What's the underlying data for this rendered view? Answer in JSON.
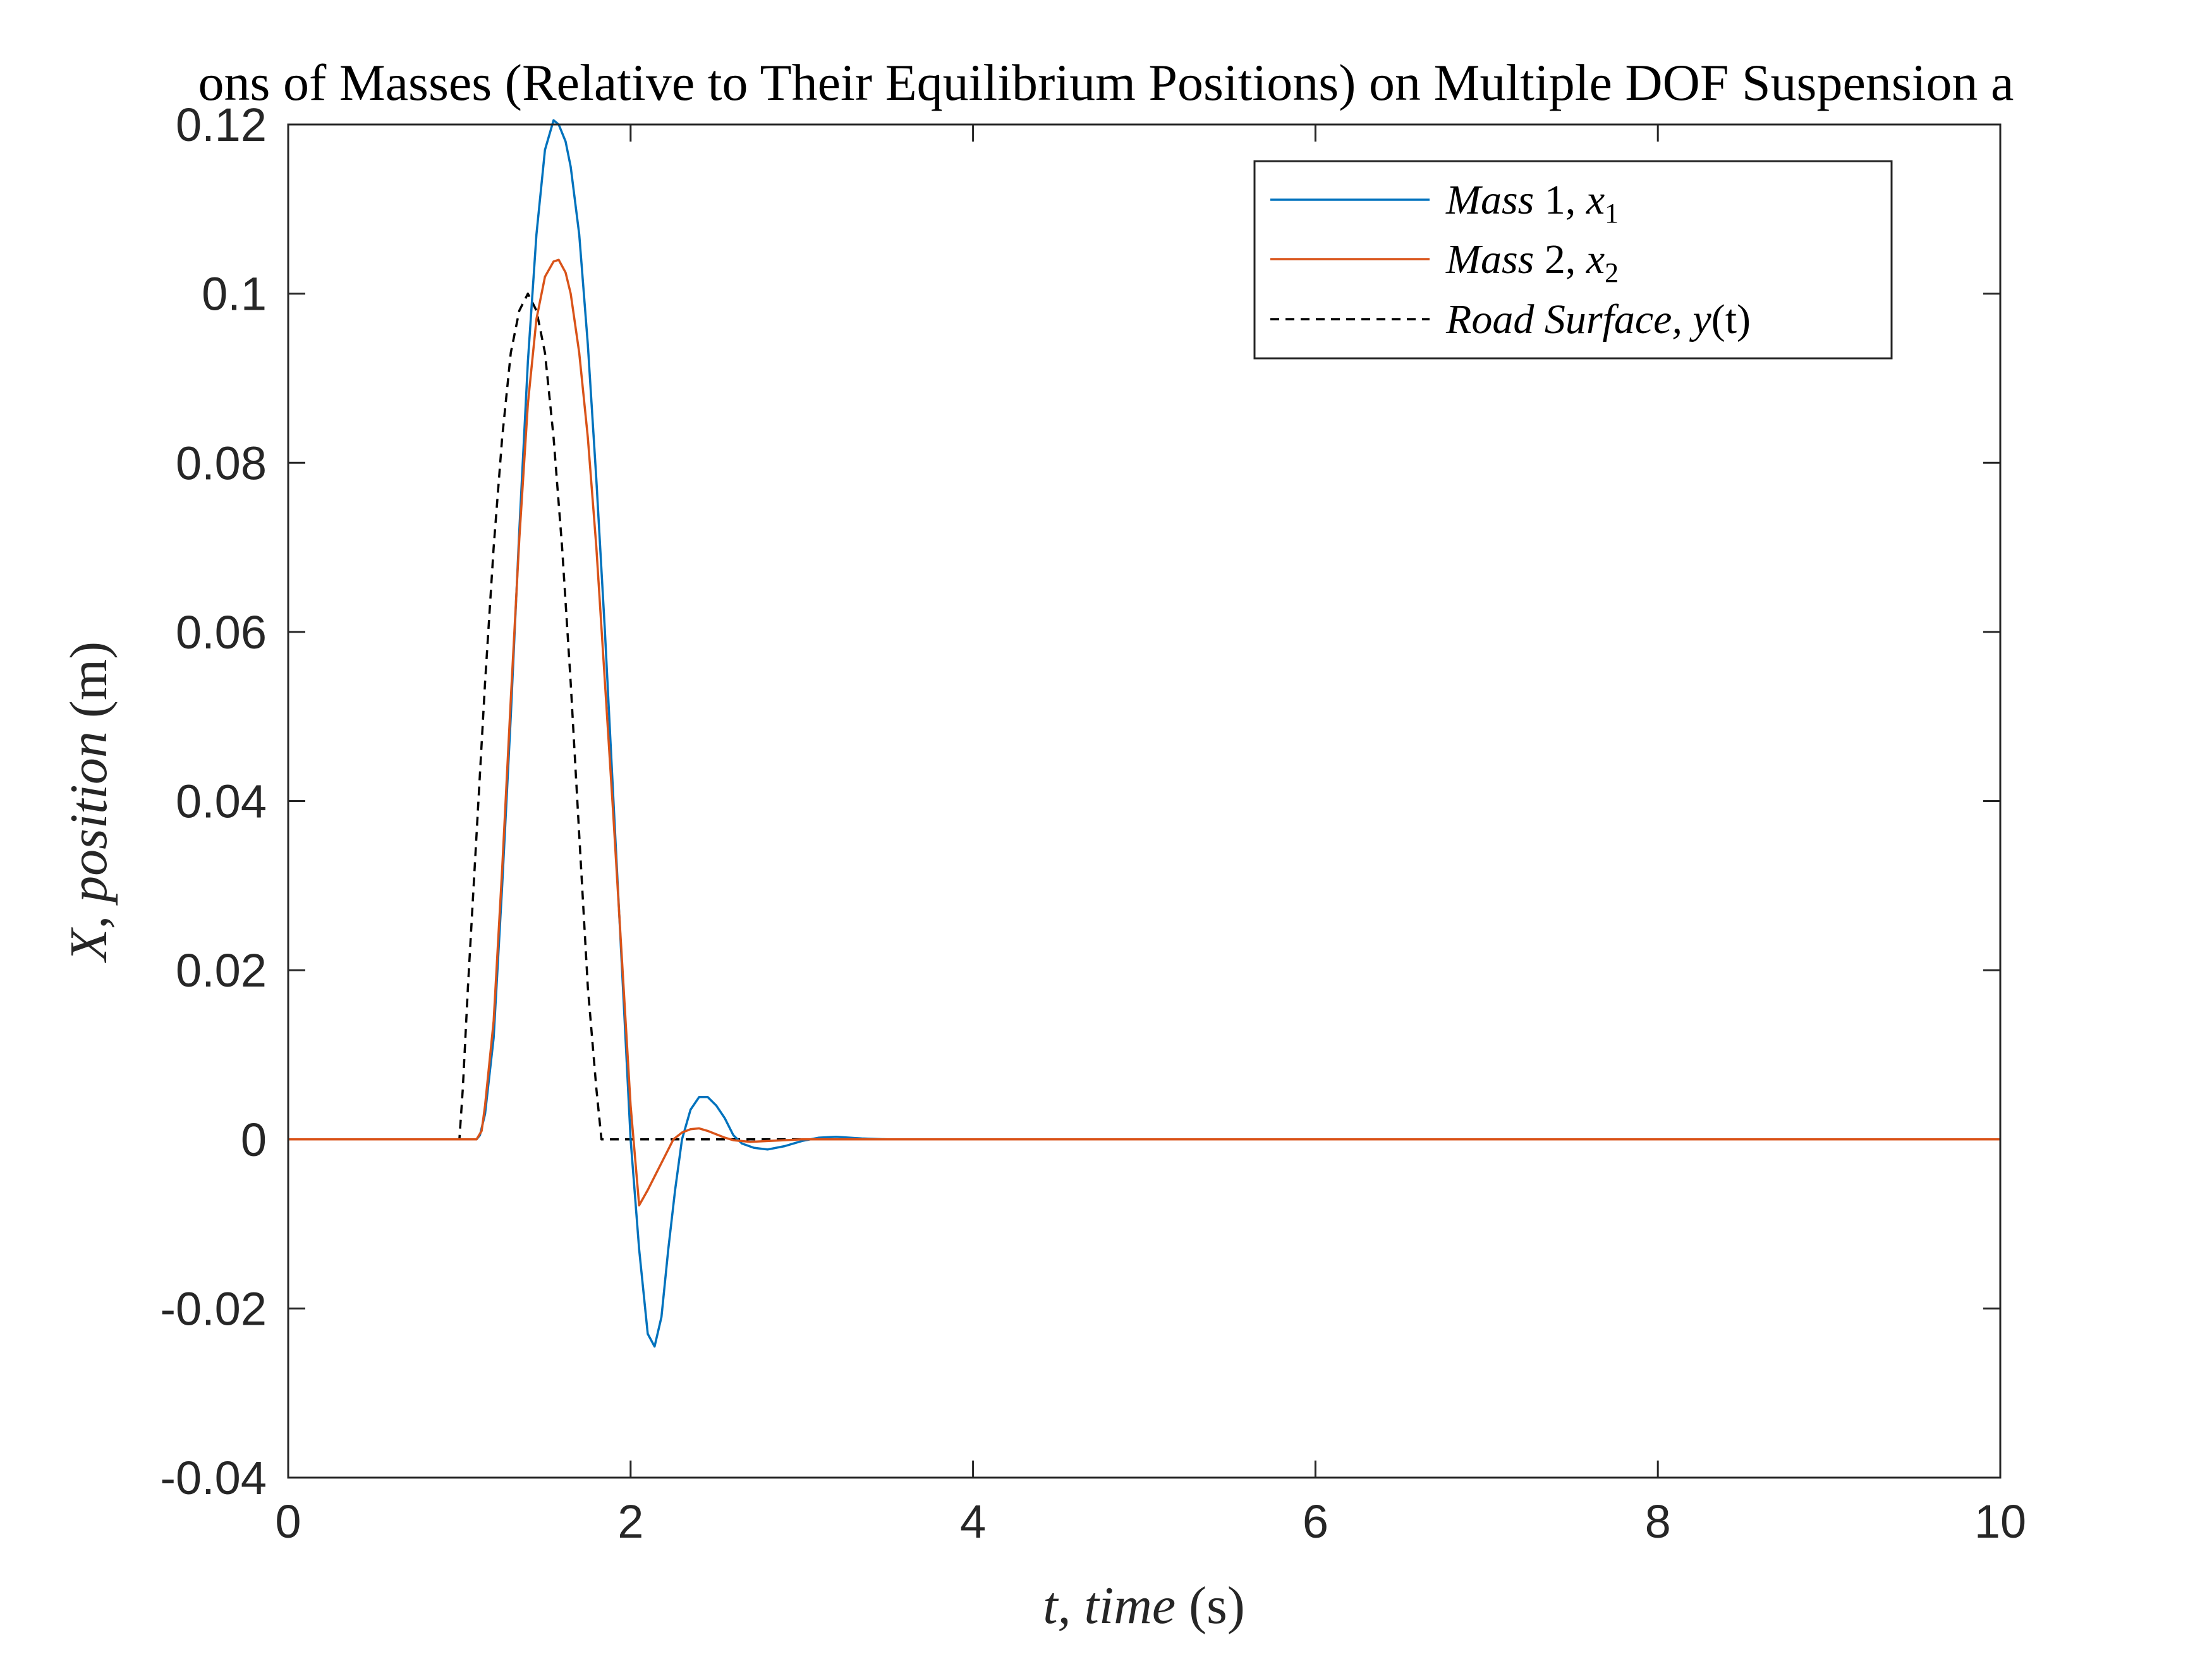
{
  "chart_data": {
    "type": "line",
    "title": "ons of Masses (Relative to Their Equilibrium Positions) on Multiple DOF Suspension a",
    "xlabel": {
      "var": "t,",
      "name": "time",
      "unit": "(s)"
    },
    "ylabel": {
      "var": "X,",
      "name": "position",
      "unit": "(m)"
    },
    "xlim": [
      0,
      10
    ],
    "ylim": [
      -0.04,
      0.12
    ],
    "xticks": [
      0,
      2,
      4,
      6,
      8,
      10
    ],
    "xtick_labels": [
      "0",
      "2",
      "4",
      "6",
      "8",
      "10"
    ],
    "yticks": [
      -0.04,
      -0.02,
      0,
      0.02,
      0.04,
      0.06,
      0.08,
      0.1,
      0.12
    ],
    "ytick_labels": [
      "-0.04",
      "-0.02",
      "0",
      "0.02",
      "0.04",
      "0.06",
      "0.08",
      "0.1",
      "0.12"
    ],
    "grid": false,
    "legend_position": "top-right",
    "series": [
      {
        "name": "Mass 1, x1",
        "legend": {
          "word1": "Mass",
          "num": "1,",
          "var": "x",
          "sub": "1"
        },
        "color": "#0072BD",
        "dash": "solid",
        "points": [
          [
            0,
            0
          ],
          [
            1.1,
            0
          ],
          [
            1.12,
            0.0005
          ],
          [
            1.15,
            0.003
          ],
          [
            1.2,
            0.012
          ],
          [
            1.25,
            0.03
          ],
          [
            1.3,
            0.05
          ],
          [
            1.35,
            0.072
          ],
          [
            1.4,
            0.092
          ],
          [
            1.45,
            0.107
          ],
          [
            1.5,
            0.117
          ],
          [
            1.55,
            0.1205
          ],
          [
            1.58,
            0.12
          ],
          [
            1.62,
            0.118
          ],
          [
            1.65,
            0.115
          ],
          [
            1.7,
            0.107
          ],
          [
            1.75,
            0.094
          ],
          [
            1.8,
            0.078
          ],
          [
            1.85,
            0.06
          ],
          [
            1.9,
            0.04
          ],
          [
            1.95,
            0.02
          ],
          [
            2.0,
            0.0
          ],
          [
            2.05,
            -0.013
          ],
          [
            2.1,
            -0.023
          ],
          [
            2.14,
            -0.0245
          ],
          [
            2.18,
            -0.021
          ],
          [
            2.22,
            -0.013
          ],
          [
            2.26,
            -0.006
          ],
          [
            2.3,
            0.0
          ],
          [
            2.35,
            0.0035
          ],
          [
            2.4,
            0.005
          ],
          [
            2.45,
            0.005
          ],
          [
            2.5,
            0.004
          ],
          [
            2.55,
            0.0025
          ],
          [
            2.6,
            0.0005
          ],
          [
            2.65,
            -0.0005
          ],
          [
            2.72,
            -0.001
          ],
          [
            2.8,
            -0.0012
          ],
          [
            2.9,
            -0.0008
          ],
          [
            3.0,
            -0.0002
          ],
          [
            3.1,
            0.0002
          ],
          [
            3.2,
            0.0003
          ],
          [
            3.35,
            0.0001
          ],
          [
            3.5,
            0
          ],
          [
            10,
            0
          ]
        ]
      },
      {
        "name": "Mass 2, x2",
        "legend": {
          "word1": "Mass",
          "num": "2,",
          "var": "x",
          "sub": "2"
        },
        "color": "#D95319",
        "dash": "solid",
        "points": [
          [
            0,
            0
          ],
          [
            1.1,
            0
          ],
          [
            1.13,
            0.001
          ],
          [
            1.15,
            0.004
          ],
          [
            1.2,
            0.014
          ],
          [
            1.25,
            0.032
          ],
          [
            1.3,
            0.052
          ],
          [
            1.35,
            0.071
          ],
          [
            1.4,
            0.087
          ],
          [
            1.45,
            0.097
          ],
          [
            1.5,
            0.102
          ],
          [
            1.55,
            0.1038
          ],
          [
            1.58,
            0.104
          ],
          [
            1.62,
            0.1025
          ],
          [
            1.65,
            0.1
          ],
          [
            1.7,
            0.093
          ],
          [
            1.75,
            0.083
          ],
          [
            1.8,
            0.07
          ],
          [
            1.85,
            0.054
          ],
          [
            1.9,
            0.038
          ],
          [
            1.95,
            0.021
          ],
          [
            2.0,
            0.004
          ],
          [
            2.05,
            -0.0078
          ],
          [
            2.1,
            -0.006
          ],
          [
            2.15,
            -0.004
          ],
          [
            2.2,
            -0.002
          ],
          [
            2.25,
            0.0
          ],
          [
            2.3,
            0.0008
          ],
          [
            2.35,
            0.0012
          ],
          [
            2.4,
            0.0013
          ],
          [
            2.45,
            0.001
          ],
          [
            2.5,
            0.0006
          ],
          [
            2.55,
            0.0002
          ],
          [
            2.6,
            -0.0001
          ],
          [
            2.7,
            -0.0003
          ],
          [
            2.8,
            -0.0002
          ],
          [
            2.9,
            -0.0001
          ],
          [
            3.0,
            0
          ],
          [
            10,
            0
          ]
        ]
      },
      {
        "name": "Road Surface, y(t)",
        "legend": {
          "word1": "Road",
          "word2": "Surface,",
          "var": "y",
          "arg": "(t)"
        },
        "color": "#000000",
        "dash": "dashed",
        "points": [
          [
            0,
            0
          ],
          [
            1.0,
            0
          ],
          [
            1.02,
            0.006
          ],
          [
            1.05,
            0.018
          ],
          [
            1.1,
            0.036
          ],
          [
            1.15,
            0.054
          ],
          [
            1.2,
            0.07
          ],
          [
            1.25,
            0.083
          ],
          [
            1.3,
            0.093
          ],
          [
            1.35,
            0.098
          ],
          [
            1.4,
            0.1
          ],
          [
            1.45,
            0.098
          ],
          [
            1.5,
            0.093
          ],
          [
            1.55,
            0.083
          ],
          [
            1.6,
            0.07
          ],
          [
            1.65,
            0.054
          ],
          [
            1.7,
            0.036
          ],
          [
            1.75,
            0.018
          ],
          [
            1.8,
            0.006
          ],
          [
            1.83,
            0
          ],
          [
            10,
            0
          ]
        ]
      }
    ]
  }
}
